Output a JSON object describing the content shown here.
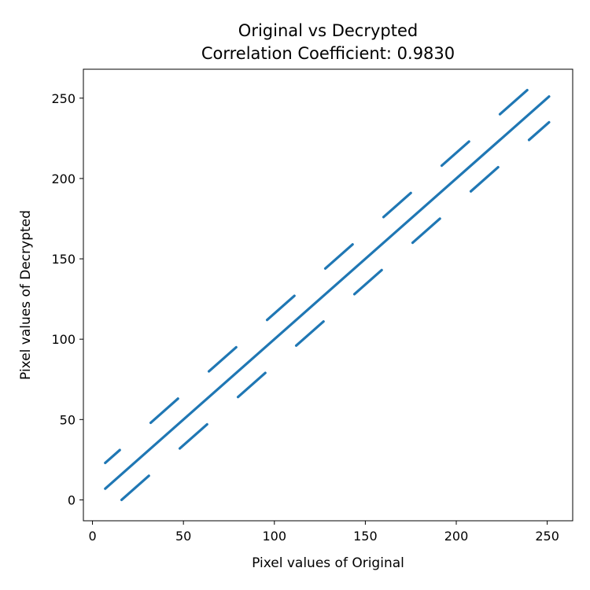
{
  "chart_data": {
    "type": "scatter",
    "title": "Original vs Decrypted",
    "subtitle": "Correlation Coefficient: 0.9830",
    "xlabel": "Pixel values of Original",
    "ylabel": "Pixel values of Decrypted",
    "xlim": [
      -5,
      264
    ],
    "ylim": [
      -13,
      268
    ],
    "xticks": [
      0,
      50,
      100,
      150,
      200,
      250
    ],
    "yticks": [
      0,
      50,
      100,
      150,
      200,
      250
    ],
    "grid": false,
    "legend": "none",
    "color": "#1f77b4",
    "series": [
      {
        "description": "main diagonal y = x",
        "points": [
          [
            7,
            7
          ],
          [
            251,
            251
          ]
        ]
      },
      {
        "description": "upper offset segments",
        "segments": [
          [
            [
              7,
              23
            ],
            [
              15,
              31
            ]
          ],
          [
            [
              32,
              48
            ],
            [
              47,
              63
            ]
          ],
          [
            [
              64,
              80
            ],
            [
              79,
              95
            ]
          ],
          [
            [
              96,
              112
            ],
            [
              111,
              127
            ]
          ],
          [
            [
              128,
              144
            ],
            [
              143,
              159
            ]
          ],
          [
            [
              160,
              176
            ],
            [
              175,
              191
            ]
          ],
          [
            [
              192,
              208
            ],
            [
              207,
              223
            ]
          ],
          [
            [
              224,
              240
            ],
            [
              239,
              255
            ]
          ]
        ]
      },
      {
        "description": "lower offset segments",
        "segments": [
          [
            [
              16,
              0
            ],
            [
              31,
              15
            ]
          ],
          [
            [
              48,
              32
            ],
            [
              63,
              47
            ]
          ],
          [
            [
              80,
              64
            ],
            [
              95,
              79
            ]
          ],
          [
            [
              112,
              96
            ],
            [
              127,
              111
            ]
          ],
          [
            [
              144,
              128
            ],
            [
              159,
              143
            ]
          ],
          [
            [
              176,
              160
            ],
            [
              191,
              175
            ]
          ],
          [
            [
              208,
              192
            ],
            [
              223,
              207
            ]
          ],
          [
            [
              240,
              224
            ],
            [
              251,
              235
            ]
          ]
        ]
      }
    ]
  }
}
